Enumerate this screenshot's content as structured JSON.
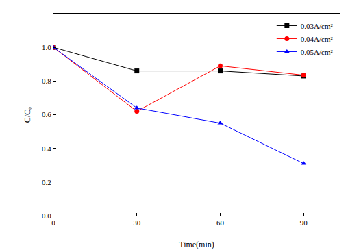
{
  "chart_data": {
    "type": "line",
    "x_label": "Time(min)",
    "y_label": "C/C₀",
    "x": [
      0,
      30,
      60,
      90
    ],
    "series": [
      {
        "name": "0.03A/cm²",
        "color": "#000000",
        "marker": "square",
        "values": [
          1.0,
          0.86,
          0.86,
          0.83
        ]
      },
      {
        "name": "0.04A/cm²",
        "color": "#ff0000",
        "marker": "circle",
        "values": [
          1.0,
          0.62,
          0.89,
          0.835
        ]
      },
      {
        "name": "0.05A/cm²",
        "color": "#0000ff",
        "marker": "triangle",
        "values": [
          1.0,
          0.64,
          0.55,
          0.31
        ]
      }
    ],
    "xlim": [
      0,
      103
    ],
    "ylim": [
      0,
      1.2
    ],
    "xticks": [
      0,
      30,
      60,
      90
    ],
    "yticks": [
      {
        "value": 0,
        "label": "0.0"
      },
      {
        "value": 0.2,
        "label": "0.2"
      },
      {
        "value": 0.4,
        "label": "0.4"
      },
      {
        "value": 0.6,
        "label": "0.6"
      },
      {
        "value": 0.8,
        "label": "0.8"
      },
      {
        "value": 1.0,
        "label": "1.0"
      }
    ],
    "grid": false,
    "legend": "upper right"
  }
}
